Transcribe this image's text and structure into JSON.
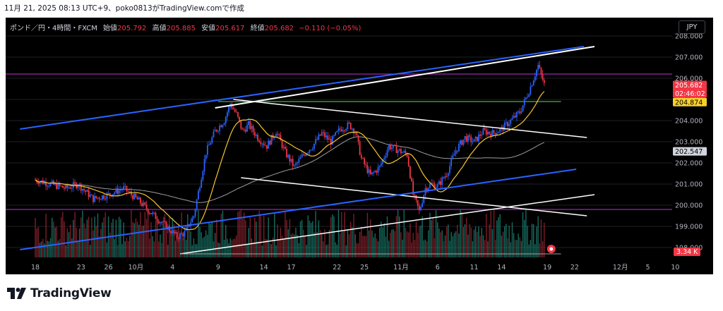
{
  "caption": "11月 21, 2025 08:13 UTC+9、poko0813がTradingView.comで作成",
  "symbol_info": {
    "name": "ポンド／円・4時間・FXCM",
    "open_label": "始値",
    "open": "205.792",
    "high_label": "高値",
    "high": "205.885",
    "low_label": "安値",
    "low": "205.617",
    "close_label": "終値",
    "close": "205.682",
    "change": "−0.110 (−0.05%)"
  },
  "currency_button": "JPY",
  "brand": "TradingView",
  "colors": {
    "bull": "#2962ff",
    "bear": "#f23645",
    "vol_bull": "#1e8f7e",
    "vol_bear": "#a32a36",
    "ma_fast": "#f7c52b",
    "ma_slow": "#9e9e9e",
    "purple_level": "#9c27b0",
    "green_level": "#4caf50",
    "channel_blue": "#2962ff",
    "trend_white": "#ffffff"
  },
  "chart_data": {
    "type": "candlestick",
    "symbol": "GBPJPY",
    "timeframe": "4h",
    "y_ticks": [
      "208.000",
      "207.000",
      "206.000",
      "205.000",
      "204.000",
      "203.000",
      "202.000",
      "201.000",
      "200.000",
      "199.000",
      "198.000"
    ],
    "ylim": [
      197.2,
      208.4
    ],
    "x_ticks": [
      {
        "label": "18",
        "i": 0
      },
      {
        "label": "23",
        "i": 30
      },
      {
        "label": "26",
        "i": 48
      },
      {
        "label": "10月",
        "i": 66
      },
      {
        "label": "4",
        "i": 90
      },
      {
        "label": "9",
        "i": 120
      },
      {
        "label": "14",
        "i": 150
      },
      {
        "label": "17",
        "i": 168
      },
      {
        "label": "22",
        "i": 198
      },
      {
        "label": "25",
        "i": 216
      },
      {
        "label": "11月",
        "i": 240
      },
      {
        "label": "6",
        "i": 264
      },
      {
        "label": "11",
        "i": 288
      },
      {
        "label": "14",
        "i": 306
      },
      {
        "label": "19",
        "i": 336
      },
      {
        "label": "22",
        "i": 354
      },
      {
        "label": "12月",
        "i": 384
      },
      {
        "label": "5",
        "i": 402
      },
      {
        "label": "10",
        "i": 420
      }
    ],
    "price_labels": [
      {
        "value": "205.682",
        "y": 205.682,
        "bg": "#f23645",
        "color": "#ffffff",
        "sub": "02:46:02"
      },
      {
        "value": "204.874",
        "y": 204.874,
        "bg": "#f7d02b",
        "color": "#000000"
      },
      {
        "value": "202.547",
        "y": 202.547,
        "bg": "#d1d4dc",
        "color": "#000000"
      }
    ],
    "volume_label": "3.34 K",
    "horizontal_levels": [
      {
        "y": 206.2,
        "color": "#9c27b0",
        "full": true
      },
      {
        "y": 199.8,
        "color": "#9c27b0",
        "full": true
      },
      {
        "y": 204.9,
        "color": "#4caf50",
        "i0": 120,
        "i1": 345
      }
    ],
    "trendlines": [
      {
        "i0": -10,
        "y0": 203.6,
        "i1": 360,
        "y1": 207.5,
        "color": "#2962ff",
        "w": 2
      },
      {
        "i0": 118,
        "y0": 204.6,
        "i1": 367,
        "y1": 207.5,
        "color": "#ffffff",
        "w": 2
      },
      {
        "i0": 130,
        "y0": 205.0,
        "i1": 362,
        "y1": 203.2,
        "color": "#ffffff",
        "w": 1.5
      },
      {
        "i0": 135,
        "y0": 201.3,
        "i1": 362,
        "y1": 199.5,
        "color": "#ffffff",
        "w": 1.5
      },
      {
        "i0": -10,
        "y0": 197.9,
        "i1": 355,
        "y1": 201.7,
        "color": "#2962ff",
        "w": 2
      },
      {
        "i0": 95,
        "y0": 197.7,
        "i1": 367,
        "y1": 200.5,
        "color": "#ffffff",
        "w": 1.5
      },
      {
        "i0": 95,
        "y0": 197.7,
        "i1": 345,
        "y1": 197.7,
        "color": "#a0a0a0",
        "w": 1
      }
    ],
    "anchors": [
      [
        0,
        201.2
      ],
      [
        10,
        201.0
      ],
      [
        20,
        200.8
      ],
      [
        28,
        201.0
      ],
      [
        38,
        200.3
      ],
      [
        48,
        200.5
      ],
      [
        58,
        200.8
      ],
      [
        68,
        200.2
      ],
      [
        78,
        199.5
      ],
      [
        86,
        199.0
      ],
      [
        93,
        198.5
      ],
      [
        98,
        198.7
      ],
      [
        104,
        199.5
      ],
      [
        108,
        201.0
      ],
      [
        112,
        202.5
      ],
      [
        118,
        203.5
      ],
      [
        124,
        204.0
      ],
      [
        128,
        204.8
      ],
      [
        132,
        204.3
      ],
      [
        136,
        203.5
      ],
      [
        140,
        203.8
      ],
      [
        146,
        203.2
      ],
      [
        152,
        202.8
      ],
      [
        158,
        203.5
      ],
      [
        164,
        202.5
      ],
      [
        170,
        201.8
      ],
      [
        176,
        202.4
      ],
      [
        182,
        202.8
      ],
      [
        188,
        203.4
      ],
      [
        194,
        203.0
      ],
      [
        200,
        203.6
      ],
      [
        206,
        203.8
      ],
      [
        210,
        203.5
      ],
      [
        214,
        202.2
      ],
      [
        220,
        201.4
      ],
      [
        226,
        201.8
      ],
      [
        232,
        202.8
      ],
      [
        238,
        202.6
      ],
      [
        244,
        202.4
      ],
      [
        248,
        200.5
      ],
      [
        252,
        199.7
      ],
      [
        256,
        200.8
      ],
      [
        260,
        201.0
      ],
      [
        264,
        200.9
      ],
      [
        270,
        201.5
      ],
      [
        276,
        202.6
      ],
      [
        282,
        203.2
      ],
      [
        288,
        203.0
      ],
      [
        294,
        203.5
      ],
      [
        300,
        203.4
      ],
      [
        306,
        203.6
      ],
      [
        312,
        204.0
      ],
      [
        318,
        204.4
      ],
      [
        324,
        205.4
      ],
      [
        330,
        206.6
      ],
      [
        334,
        205.7
      ]
    ],
    "ma_fast_period": 20,
    "ma_slow_period": 100
  }
}
